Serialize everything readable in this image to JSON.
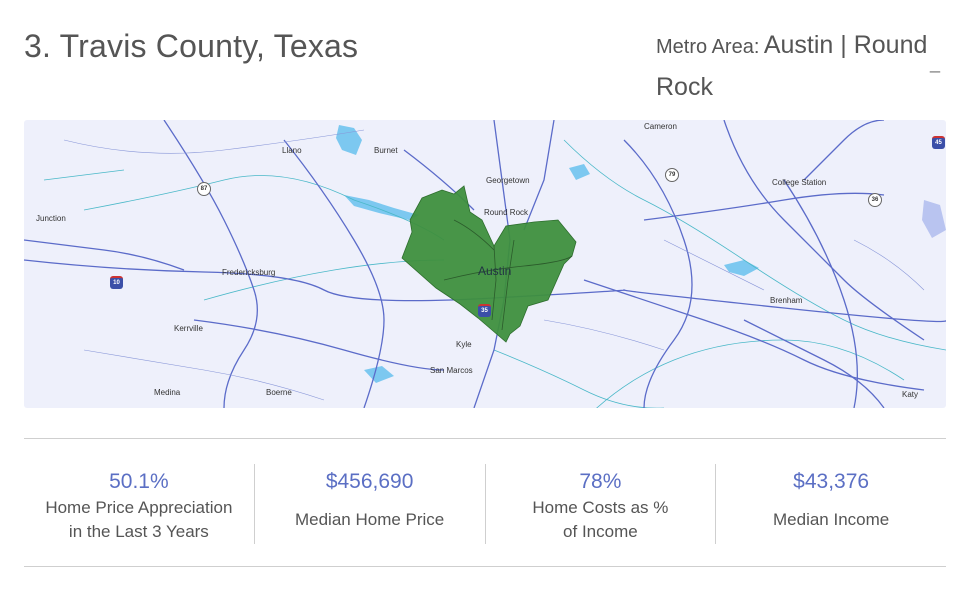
{
  "header": {
    "title": "3. Travis County, Texas",
    "metro_label": "Metro Area:",
    "metro_value": "Austin | Round Rock"
  },
  "map": {
    "highlight_color": "#3e8f3e",
    "cities": {
      "cameron": "Cameron",
      "llano": "Llano",
      "burnet": "Burnet",
      "georgetown": "Georgetown",
      "round_rock": "Round Rock",
      "college_station": "College Station",
      "junction": "Junction",
      "fredericksburg": "Fredericksburg",
      "austin": "Austin",
      "brenham": "Brenham",
      "kerrville": "Kerrville",
      "kyle": "Kyle",
      "san_marcos": "San Marcos",
      "medina": "Medina",
      "boerne": "Boerne",
      "katy": "Katy"
    },
    "shields": {
      "us87": "87",
      "us79": "79",
      "us36": "36",
      "i10": "10",
      "i35": "35",
      "i45": "45"
    }
  },
  "stats": [
    {
      "value": "50.1%",
      "label": "Home Price Appreciation in the Last 3 Years"
    },
    {
      "value": "$456,690",
      "label": "Median Home Price"
    },
    {
      "value": "78%",
      "label": "Home Costs as % of Income"
    },
    {
      "value": "$43,376",
      "label": "Median Income"
    }
  ]
}
